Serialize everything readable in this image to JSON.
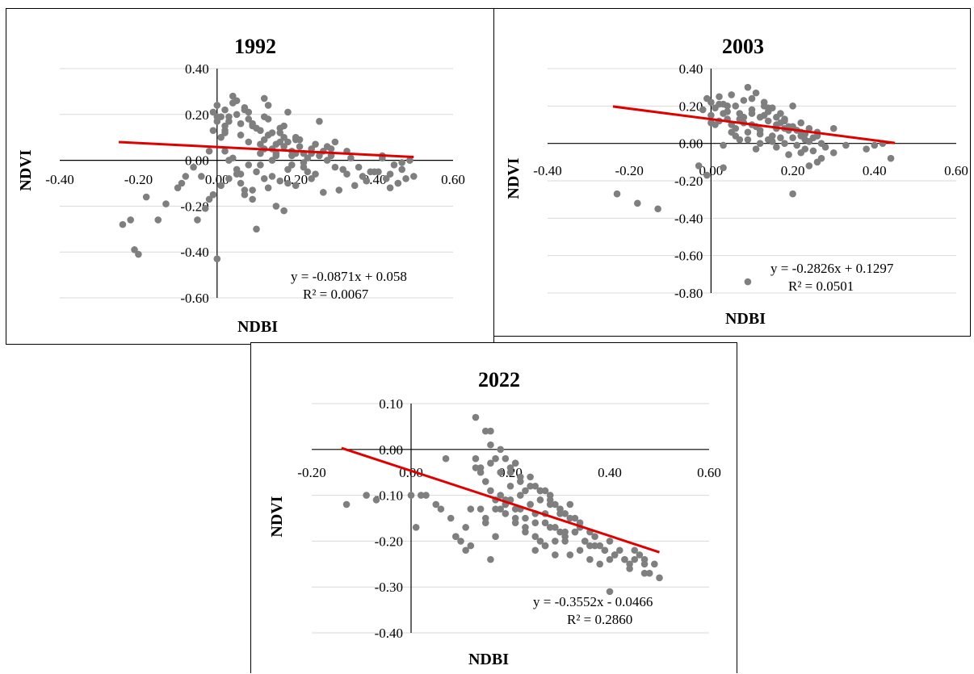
{
  "chart_data": [
    {
      "id": "p1992",
      "type": "scatter",
      "title": "1992",
      "xlabel": "NDBI",
      "ylabel": "NDVI",
      "xlim": [
        -0.4,
        0.6
      ],
      "ylim": [
        -0.6,
        0.4
      ],
      "xticks": [
        "-0.40",
        "-0.20",
        "0.00",
        "0.20",
        "0.40",
        "0.60"
      ],
      "yticks": [
        "0.40",
        "0.20",
        "0.00",
        "-0.20",
        "-0.40",
        "-0.60"
      ],
      "trendline": {
        "slope": -0.0871,
        "intercept": 0.058,
        "x_range": [
          -0.25,
          0.5
        ]
      },
      "equation": "y = -0.0871x + 0.058",
      "r2": "R² = 0.0067",
      "marker_color": "#7f7f7f",
      "line_color": "#e00000",
      "x": [
        -0.01,
        0.0,
        0.01,
        0.02,
        0.03,
        0.04,
        0.05,
        0.06,
        0.07,
        0.08,
        0.09,
        0.1,
        -0.01,
        0.0,
        0.02,
        0.03,
        0.05,
        0.06,
        0.08,
        0.09,
        0.01,
        0.02,
        0.04,
        0.07,
        0.11,
        0.12,
        0.13,
        0.14,
        0.15,
        0.16,
        0.17,
        0.18,
        0.19,
        0.2,
        0.12,
        0.13,
        0.15,
        0.16,
        0.18,
        0.21,
        0.22,
        0.23,
        0.24,
        0.25,
        0.26,
        0.27,
        0.28,
        0.2,
        0.22,
        0.24,
        0.26,
        0.14,
        0.17,
        0.19,
        0.29,
        0.3,
        0.32,
        0.34,
        0.36,
        0.4,
        0.42,
        0.43,
        0.44,
        0.45,
        0.46,
        0.47,
        0.48,
        0.5,
        0.35,
        0.38,
        0.41,
        0.44,
        0.46,
        0.31,
        0.33,
        0.02,
        0.04,
        0.05,
        0.06,
        0.08,
        0.09,
        0.1,
        0.11,
        0.12,
        0.13,
        0.14,
        0.16,
        0.18,
        0.2,
        0.15,
        0.17,
        0.07,
        0.1,
        -0.24,
        -0.22,
        -0.21,
        -0.2,
        -0.18,
        -0.15,
        -0.13,
        -0.1,
        -0.08,
        -0.05,
        -0.03,
        -0.02,
        -0.01,
        -0.04,
        -0.06,
        -0.09,
        0.0,
        0.03,
        0.06,
        0.07,
        0.09,
        0.11,
        0.14,
        0.18,
        0.2,
        0.23,
        0.27,
        0.29,
        0.01,
        0.03,
        0.05,
        0.08,
        0.12,
        0.15,
        0.19,
        0.21,
        0.25,
        0.28,
        0.3,
        0.33,
        0.37,
        0.39,
        0.42,
        0.47,
        0.49,
        0.12,
        0.16,
        0.11,
        0.13,
        0.17,
        0.22,
        0.24,
        0.02,
        0.0,
        -0.02
      ],
      "y": [
        0.21,
        0.24,
        0.19,
        0.22,
        0.17,
        0.25,
        0.2,
        0.16,
        0.23,
        0.18,
        0.15,
        0.14,
        0.13,
        0.17,
        0.12,
        0.19,
        0.26,
        0.11,
        0.21,
        0.16,
        0.1,
        0.15,
        0.28,
        0.22,
        0.13,
        0.09,
        0.11,
        0.05,
        0.07,
        0.12,
        0.06,
        0.08,
        0.04,
        0.1,
        0.27,
        0.24,
        0.02,
        0.08,
        0.21,
        0.06,
        0.03,
        0.01,
        0.05,
        0.07,
        0.02,
        0.04,
        0.06,
        0.09,
        -0.01,
        0.03,
        0.17,
        0.12,
        0.1,
        0.02,
        0.05,
        0.08,
        -0.04,
        0.01,
        -0.03,
        -0.05,
        0.01,
        -0.08,
        -0.06,
        -0.02,
        -0.1,
        -0.04,
        -0.08,
        -0.07,
        -0.11,
        -0.09,
        -0.05,
        -0.12,
        -0.1,
        -0.13,
        -0.06,
        0.04,
        0.01,
        -0.06,
        -0.1,
        -0.02,
        -0.13,
        -0.05,
        0.03,
        -0.08,
        -0.12,
        0.0,
        -0.09,
        -0.04,
        -0.11,
        -0.2,
        -0.22,
        -0.15,
        -0.3,
        -0.28,
        -0.26,
        -0.39,
        -0.41,
        -0.16,
        -0.26,
        -0.19,
        -0.12,
        -0.07,
        -0.26,
        -0.21,
        -0.17,
        -0.15,
        -0.07,
        -0.03,
        -0.1,
        -0.43,
        -0.08,
        -0.06,
        -0.13,
        -0.17,
        -0.02,
        -0.07,
        -0.1,
        0.03,
        -0.05,
        -0.14,
        0.02,
        -0.11,
        0.0,
        -0.04,
        0.08,
        0.05,
        0.03,
        -0.02,
        0.09,
        -0.06,
        0.0,
        -0.03,
        0.04,
        -0.07,
        -0.05,
        0.02,
        -0.01,
        0.0,
        0.19,
        0.14,
        0.07,
        0.18,
        0.15,
        -0.03,
        -0.08,
        0.13,
        0.19,
        0.04
      ]
    },
    {
      "id": "p2003",
      "type": "scatter",
      "title": "2003",
      "xlabel": "NDBI",
      "ylabel": "NDVI",
      "xlim": [
        -0.4,
        0.6
      ],
      "ylim": [
        -0.8,
        0.4
      ],
      "xticks": [
        "-0.40",
        "-0.20",
        "0.00",
        "0.20",
        "0.40",
        "0.60"
      ],
      "yticks": [
        "0.40",
        "0.20",
        "0.00",
        "-0.20",
        "-0.40",
        "-0.60",
        "-0.80"
      ],
      "trendline": {
        "slope": -0.2826,
        "intercept": 0.1297,
        "x_range": [
          -0.24,
          0.45
        ]
      },
      "equation": "y = -0.2826x + 0.1297",
      "r2": "R² = 0.0501",
      "marker_color": "#7f7f7f",
      "line_color": "#e00000",
      "x": [
        -0.01,
        0.0,
        0.01,
        0.02,
        0.03,
        0.04,
        0.05,
        0.06,
        0.07,
        0.08,
        0.09,
        0.1,
        0.11,
        0.12,
        0.13,
        0.14,
        0.15,
        0.16,
        0.17,
        0.18,
        0.19,
        0.2,
        0.21,
        0.22,
        0.23,
        0.24,
        0.25,
        0.26,
        0.27,
        0.28,
        0.0,
        0.02,
        0.04,
        0.06,
        0.08,
        0.1,
        0.12,
        0.14,
        0.16,
        0.18,
        0.2,
        0.22,
        0.24,
        0.26,
        0.01,
        0.03,
        0.05,
        0.07,
        0.09,
        0.11,
        0.13,
        0.15,
        0.17,
        0.19,
        0.21,
        0.23,
        0.25,
        0.02,
        0.04,
        0.06,
        0.08,
        0.1,
        0.12,
        0.14,
        0.16,
        0.18,
        0.2,
        0.22,
        0.0,
        -0.02,
        0.03,
        0.07,
        0.11,
        0.15,
        0.19,
        0.23,
        0.27,
        0.3,
        0.33,
        0.38,
        0.4,
        0.42,
        0.44,
        0.09,
        0.13,
        0.17,
        -0.23,
        -0.18,
        -0.13,
        -0.03,
        -0.01,
        0.03,
        0.2,
        0.09,
        0.05,
        0.1,
        0.14,
        0.18,
        0.22,
        0.26,
        0.3,
        0.12,
        0.16,
        0.24
      ],
      "y": [
        0.24,
        0.22,
        0.19,
        0.25,
        0.21,
        0.17,
        0.26,
        0.2,
        0.16,
        0.23,
        0.3,
        0.18,
        0.27,
        0.14,
        0.22,
        0.12,
        0.19,
        0.1,
        0.16,
        0.13,
        0.09,
        0.2,
        0.07,
        0.11,
        0.05,
        0.08,
        0.03,
        0.06,
        0.0,
        -0.02,
        0.15,
        0.12,
        0.2,
        0.08,
        0.14,
        0.1,
        0.05,
        0.17,
        0.08,
        0.12,
        0.03,
        0.06,
        0.01,
        0.04,
        0.1,
        0.16,
        0.06,
        0.13,
        0.02,
        0.09,
        0.15,
        0.04,
        0.11,
        0.07,
        -0.01,
        0.02,
        -0.04,
        0.21,
        0.13,
        0.04,
        0.11,
        0.24,
        0.07,
        0.02,
        0.14,
        0.0,
        0.09,
        -0.05,
        0.11,
        0.18,
        -0.01,
        0.02,
        -0.03,
        0.01,
        -0.06,
        -0.03,
        -0.08,
        0.08,
        -0.01,
        -0.03,
        -0.01,
        0.0,
        -0.08,
        0.06,
        0.2,
        0.03,
        -0.27,
        -0.32,
        -0.35,
        -0.12,
        -0.17,
        -0.13,
        -0.27,
        -0.74,
        0.1,
        0.16,
        0.19,
        0.08,
        0.04,
        -0.1,
        -0.05,
        0.0,
        -0.02,
        -0.12
      ]
    },
    {
      "id": "p2022",
      "type": "scatter",
      "title": "2022",
      "xlabel": "NDBI",
      "ylabel": "NDVI",
      "xlim": [
        -0.2,
        0.6
      ],
      "ylim": [
        -0.4,
        0.1
      ],
      "xticks": [
        "-0.20",
        "0.00",
        "0.20",
        "0.40",
        "0.60"
      ],
      "yticks": [
        "0.10",
        "0.00",
        "-0.10",
        "-0.20",
        "-0.30",
        "-0.40"
      ],
      "trendline": {
        "slope": -0.3552,
        "intercept": -0.0466,
        "x_range": [
          -0.14,
          0.5
        ]
      },
      "equation": "y = -0.3552x - 0.0466",
      "r2": "R² = 0.2860",
      "marker_color": "#7f7f7f",
      "line_color": "#e00000",
      "x": [
        -0.13,
        -0.09,
        -0.07,
        0.0,
        0.01,
        0.02,
        0.03,
        0.05,
        0.06,
        0.08,
        0.1,
        0.11,
        0.13,
        0.13,
        0.14,
        0.14,
        0.15,
        0.15,
        0.16,
        0.16,
        0.17,
        0.17,
        0.18,
        0.18,
        0.19,
        0.19,
        0.2,
        0.2,
        0.21,
        0.21,
        0.22,
        0.22,
        0.23,
        0.23,
        0.24,
        0.24,
        0.25,
        0.25,
        0.26,
        0.26,
        0.27,
        0.27,
        0.28,
        0.28,
        0.29,
        0.29,
        0.3,
        0.3,
        0.31,
        0.31,
        0.32,
        0.32,
        0.33,
        0.33,
        0.34,
        0.34,
        0.35,
        0.36,
        0.36,
        0.37,
        0.38,
        0.38,
        0.39,
        0.4,
        0.4,
        0.41,
        0.42,
        0.43,
        0.44,
        0.45,
        0.46,
        0.47,
        0.48,
        0.49,
        0.5,
        0.12,
        0.14,
        0.16,
        0.18,
        0.2,
        0.22,
        0.24,
        0.26,
        0.28,
        0.3,
        0.32,
        0.34,
        0.15,
        0.17,
        0.19,
        0.21,
        0.23,
        0.25,
        0.27,
        0.29,
        0.31,
        0.33,
        0.35,
        0.37,
        0.39,
        0.41,
        0.43,
        0.45,
        0.47,
        0.16,
        0.18,
        0.2,
        0.22,
        0.24,
        0.26,
        0.28,
        0.3,
        0.17,
        0.19,
        0.21,
        0.23,
        0.25,
        0.27,
        0.13,
        0.11,
        0.09,
        0.07,
        0.09,
        0.12,
        0.15,
        0.16,
        0.19,
        0.21,
        0.25,
        0.27,
        0.29,
        0.31,
        0.36,
        0.4,
        0.44,
        0.47
      ],
      "y": [
        -0.12,
        -0.1,
        -0.11,
        -0.1,
        -0.17,
        -0.1,
        -0.1,
        -0.12,
        -0.13,
        -0.15,
        -0.2,
        -0.22,
        0.07,
        -0.02,
        -0.13,
        -0.04,
        0.04,
        -0.07,
        0.01,
        -0.09,
        -0.02,
        -0.11,
        -0.05,
        -0.13,
        -0.02,
        -0.12,
        -0.05,
        -0.11,
        -0.03,
        -0.15,
        -0.07,
        -0.13,
        -0.09,
        -0.18,
        -0.06,
        -0.12,
        -0.08,
        -0.16,
        -0.11,
        -0.2,
        -0.09,
        -0.14,
        -0.1,
        -0.17,
        -0.12,
        -0.2,
        -0.13,
        -0.18,
        -0.14,
        -0.2,
        -0.12,
        -0.23,
        -0.15,
        -0.18,
        -0.17,
        -0.22,
        -0.2,
        -0.18,
        -0.24,
        -0.19,
        -0.21,
        -0.25,
        -0.22,
        -0.2,
        -0.31,
        -0.23,
        -0.22,
        -0.24,
        -0.26,
        -0.24,
        -0.23,
        -0.25,
        -0.27,
        -0.25,
        -0.28,
        -0.13,
        -0.05,
        -0.03,
        -0.1,
        -0.08,
        -0.1,
        -0.12,
        -0.09,
        -0.12,
        -0.14,
        -0.15,
        -0.16,
        -0.15,
        -0.13,
        -0.11,
        -0.13,
        -0.15,
        -0.14,
        -0.16,
        -0.17,
        -0.18,
        -0.18,
        -0.2,
        -0.21,
        -0.22,
        -0.23,
        -0.24,
        -0.22,
        -0.24,
        0.04,
        0.0,
        -0.04,
        -0.06,
        -0.08,
        -0.09,
        -0.11,
        -0.13,
        -0.19,
        -0.14,
        -0.16,
        -0.17,
        -0.19,
        -0.21,
        -0.04,
        -0.17,
        -0.19,
        -0.02,
        -0.19,
        -0.21,
        -0.16,
        -0.24,
        -0.12,
        -0.03,
        -0.22,
        -0.21,
        -0.23,
        -0.19,
        -0.21,
        -0.24,
        -0.25,
        -0.27
      ]
    }
  ]
}
